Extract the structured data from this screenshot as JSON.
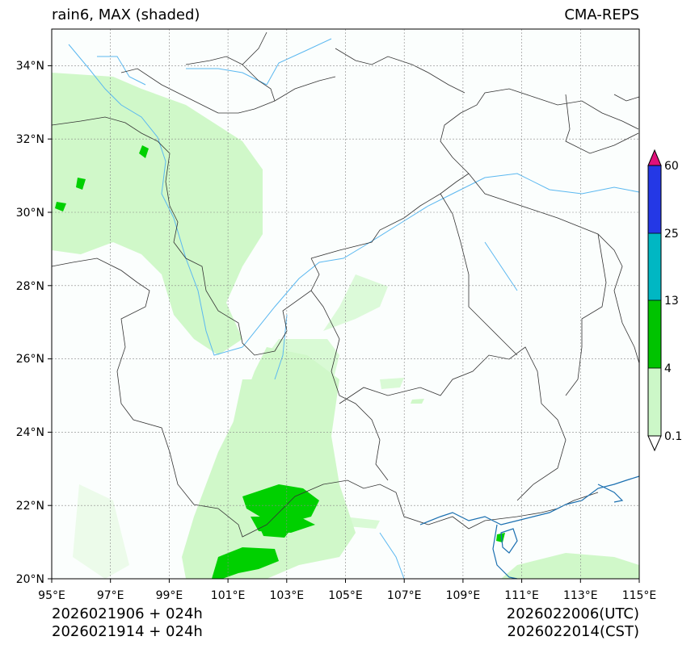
{
  "header": {
    "title_left": "rain6, MAX (shaded)",
    "title_right": "CMA-REPS"
  },
  "footer": {
    "init_utc_line": "2026021906  +  024h",
    "init_cst_line": "2026021914  +  024h",
    "valid_utc": "2026022006(UTC)",
    "valid_cst": "2026022014(CST)"
  },
  "map": {
    "lon_range": [
      95,
      115
    ],
    "lat_range": [
      20,
      35
    ],
    "lon_ticks": [
      "95°E",
      "97°E",
      "99°E",
      "101°E",
      "103°E",
      "105°E",
      "107°E",
      "109°E",
      "111°E",
      "113°E",
      "115°E"
    ],
    "lat_ticks": [
      "20°N",
      "22°N",
      "24°N",
      "26°N",
      "28°N",
      "30°N",
      "32°N",
      "34°N"
    ]
  },
  "colorbar": {
    "levels": [
      "0.1",
      "4",
      "13",
      "25",
      "60"
    ],
    "colors": [
      "#ccf7c8",
      "#00c300",
      "#00b7c3",
      "#2438e6",
      "#e0107a"
    ]
  },
  "colors": {
    "rain_light": "#c8f7c0",
    "rain_moderate": "#00d000",
    "river": "#5bb8f0",
    "border": "#333333"
  }
}
